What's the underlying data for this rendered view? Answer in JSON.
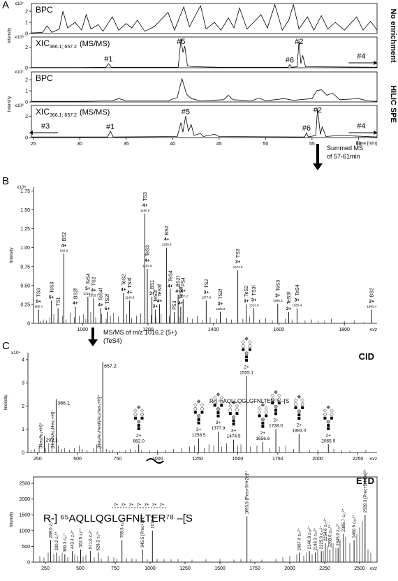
{
  "chart_data": [
    {
      "type": "line",
      "panel": "A",
      "title": "BPC",
      "y_scale": "x10⁷",
      "color": "#000000",
      "xlim": [
        24.8,
        62
      ],
      "ylim": [
        0,
        2.7
      ],
      "yticks": [
        0,
        1,
        2
      ],
      "x": [
        24.8,
        26,
        26.5,
        27,
        27.8,
        28.2,
        28.7,
        29.5,
        30.2,
        30.7,
        31.2,
        32,
        32.5,
        33.5,
        34.2,
        35,
        35.6,
        36.2,
        37,
        38,
        39.5,
        40.2,
        41.2,
        41.8,
        43,
        43.6,
        44.5,
        45.2,
        46,
        46.6,
        47.2,
        48,
        49.5,
        50.2,
        51,
        51.8,
        52.5,
        53,
        53.6,
        54.5,
        55.2,
        56,
        56.7,
        57.5,
        58.5,
        59.8,
        60.5,
        61.3,
        62
      ],
      "values": [
        0.05,
        0.1,
        0.7,
        0.1,
        0.4,
        2.0,
        0.5,
        1.0,
        0.3,
        1.7,
        0.4,
        0.8,
        0.2,
        1.5,
        0.3,
        0.9,
        0.5,
        1.2,
        0.2,
        0.6,
        1.9,
        0.3,
        2.4,
        0.6,
        2.5,
        0.4,
        1.0,
        0.3,
        1.4,
        0.5,
        2.3,
        0.4,
        1.7,
        0.5,
        2.6,
        0.3,
        1.2,
        2.6,
        0.4,
        1.5,
        0.3,
        1.6,
        0.4,
        1.0,
        0.3,
        1.5,
        0.3,
        1.1,
        0.3
      ]
    },
    {
      "type": "line",
      "title": "XIC",
      "title_sub": "366.1; 657.2",
      "title_suffix": "(MS/MS)",
      "y_scale": "x10⁶",
      "y_label": "Intensity",
      "side_label": "No enrichment",
      "color": "#000000",
      "xlim": [
        24.8,
        62
      ],
      "ylim": [
        0,
        3
      ],
      "yticks": [
        0,
        2
      ],
      "x": [
        24.8,
        30,
        32.8,
        33.1,
        33.4,
        40.6,
        40.9,
        41.1,
        41.3,
        41.6,
        42.2,
        45,
        52.4,
        52.6,
        52.8,
        53.4,
        53.6,
        53.8,
        54,
        54.3,
        62
      ],
      "values": [
        0.02,
        0.03,
        0.05,
        0.4,
        0.05,
        0.05,
        2.8,
        1.5,
        2.1,
        0.2,
        0.1,
        0.05,
        0.05,
        0.3,
        0.05,
        0.1,
        2.6,
        0.4,
        1.2,
        0.1,
        0.05
      ],
      "annotations": [
        {
          "label": "#5",
          "x": 40.9
        },
        {
          "label": "#2",
          "x": 53.6
        },
        {
          "label": "#1",
          "x": 33.1
        },
        {
          "label": "#6",
          "x": 52.6
        },
        {
          "label": "#4",
          "x": 60.3,
          "arrow": "right"
        }
      ]
    },
    {
      "type": "line",
      "title": "BPC",
      "y_scale": "x10⁷",
      "color": "#000000",
      "xlim": [
        24.8,
        62
      ],
      "ylim": [
        0,
        2.7
      ],
      "yticks": [
        0,
        1,
        2
      ],
      "x": [
        24.8,
        30,
        33.5,
        34.2,
        35,
        39.5,
        40.5,
        41,
        41.5,
        42,
        43,
        45.5,
        46,
        46.5,
        48.5,
        49.3,
        50,
        52,
        53,
        55,
        55.5,
        56,
        56.6,
        57.2,
        58,
        60,
        61,
        62
      ],
      "values": [
        0.05,
        0.05,
        0.1,
        0.3,
        0.1,
        0.1,
        0.4,
        2.1,
        0.7,
        0.3,
        0.1,
        0.2,
        0.6,
        0.2,
        0.1,
        0.35,
        0.1,
        0.3,
        0.15,
        0.3,
        1.0,
        1.1,
        0.6,
        0.8,
        0.2,
        0.3,
        0.1,
        0.05
      ]
    },
    {
      "type": "line",
      "title": "XIC",
      "title_sub": "366.1; 657.2",
      "title_suffix": "(MS/MS)",
      "y_scale": "x10⁶",
      "y_label": "Intensity",
      "side_label": "HILIC SPE",
      "x_label": "Time [min]",
      "color": "#000000",
      "xlim": [
        24.8,
        62
      ],
      "ylim": [
        0,
        3
      ],
      "yticks": [
        0,
        2
      ],
      "xticks": [
        25,
        30,
        35,
        40,
        45,
        50,
        55,
        60
      ],
      "x": [
        24.8,
        33,
        33.3,
        33.6,
        40.5,
        40.9,
        41.1,
        41.4,
        41.7,
        42,
        42.3,
        43,
        43.3,
        44.5,
        45,
        54.2,
        54.4,
        54.6,
        55.4,
        55.6,
        55.9,
        56.1,
        56.5,
        58,
        62
      ],
      "values": [
        0.05,
        0.05,
        0.6,
        0.05,
        0.1,
        1.4,
        0.5,
        2.0,
        0.6,
        1.2,
        0.2,
        0.4,
        0.1,
        0.3,
        0.1,
        0.05,
        0.45,
        0.05,
        0.2,
        2.7,
        0.3,
        1.0,
        0.1,
        0.2,
        0.05
      ],
      "annotations": [
        {
          "label": "#3",
          "x": 26.3,
          "arrow": "left"
        },
        {
          "label": "#1",
          "x": 33.3
        },
        {
          "label": "#5",
          "x": 41.4
        },
        {
          "label": "#6",
          "x": 54.4
        },
        {
          "label": "#2",
          "x": 55.6
        },
        {
          "label": "#4",
          "x": 60.3,
          "arrow": "right"
        }
      ]
    },
    {
      "type": "stick",
      "panel": "B",
      "y_scale": "x10⁶",
      "y_label": "Intensity",
      "x_label": "m/z",
      "color": "#000000",
      "xlim": [
        850,
        1900
      ],
      "ylim": [
        0,
        1.8
      ],
      "yticks": [
        0,
        0.25,
        {
          "value": 0.5,
          "label": "0.50"
        },
        0.75,
        {
          "value": 1,
          "label": "1.00"
        },
        1.25,
        {
          "value": 1.5,
          "label": "1.50"
        },
        1.75
      ],
      "xticks": [
        1000,
        1200,
        1400,
        1600,
        1800
      ],
      "x": [
        870,
        880,
        890,
        900,
        912,
        925,
        938,
        950,
        962,
        975,
        990,
        1002,
        1010,
        1025,
        1040,
        1058,
        1072,
        1085,
        1095,
        1110,
        1135,
        1150,
        1165,
        1178,
        1210,
        1225,
        1240,
        1265,
        1280,
        1295,
        1320,
        1335,
        1350,
        1365,
        1390,
        1410,
        1440,
        1455,
        1490,
        1510,
        1540,
        1560,
        1580,
        1620,
        1640,
        1680,
        1700,
        1720,
        1740,
        1760,
        1800,
        1830,
        1860
      ],
      "values": [
        0.03,
        0.05,
        0.04,
        0.08,
        0.12,
        0.06,
        0.1,
        0.05,
        0.14,
        0.08,
        0.1,
        0.12,
        0.06,
        0.15,
        0.08,
        0.12,
        0.06,
        0.1,
        0.14,
        0.09,
        0.12,
        0.07,
        0.1,
        0.13,
        0.11,
        0.08,
        0.12,
        0.1,
        0.07,
        0.09,
        0.08,
        0.06,
        0.1,
        0.05,
        0.08,
        0.06,
        0.07,
        0.05,
        0.06,
        0.09,
        0.05,
        0.07,
        0.04,
        0.06,
        0.05,
        0.04,
        0.05,
        0.03,
        0.04,
        0.06,
        0.03,
        0.04,
        0.02
      ],
      "peaks": [
        {
          "name": "TS3",
          "charge": "5+",
          "mz": 865.4,
          "value": 0.18
        },
        {
          "name": "TeS3",
          "charge": "5+",
          "x": 905,
          "value": 0.3
        },
        {
          "name": "TS1",
          "x": 925,
          "value": 0.2
        },
        {
          "name": "BS2",
          "charge": "4+",
          "mz": 942.9,
          "value": 0.92
        },
        {
          "name": "BS2f",
          "charge": "4+",
          "x": 978,
          "value": 0.22
        },
        {
          "name": "TeS4",
          "charge": "5+",
          "mz": 1016.2,
          "value": 0.35
        },
        {
          "name": "TS2",
          "charge": "4+",
          "mz": 1033.7,
          "value": 0.33
        },
        {
          "name": "TeS4f",
          "charge": "4+",
          "x": 1055,
          "value": 0.2
        },
        {
          "name": "TS2f",
          "charge": "5+",
          "x": 1075,
          "value": 0.15
        },
        {
          "name": "TeS2",
          "charge": "4+",
          "x": 1125,
          "value": 0.4
        },
        {
          "name": "TS3f",
          "charge": "4+",
          "mz": 1143.8,
          "value": 0.3
        },
        {
          "name": "TS3",
          "charge": "4+",
          "mz": 1190.5,
          "value": 1.45
        },
        {
          "name": "TeS3",
          "charge": "4+",
          "mz": 1197.8,
          "value": 0.72
        },
        {
          "name": "BS1",
          "charge": "3+",
          "x": 1212,
          "value": 0.35
        },
        {
          "name": "TeS2f",
          "charge": "3+",
          "x": 1222,
          "value": 0.18
        },
        {
          "name": "TeS3f",
          "charge": "4+",
          "x": 1235,
          "value": 0.25
        },
        {
          "name": "BS2",
          "charge": "4+",
          "mz": 1256.9,
          "value": 1.0
        },
        {
          "name": "TeS4",
          "charge": "4+",
          "x": 1268,
          "value": 0.45
        },
        {
          "name": "PS3",
          "x": 1280,
          "value": 0.15
        },
        {
          "name": "BS2f",
          "charge": "4+",
          "x": 1292,
          "value": 0.38
        },
        {
          "name": "TeS4f",
          "charge": "4+",
          "x": 1300,
          "value": 0.22
        },
        {
          "name": "PS4",
          "charge": "4+",
          "mz": 1307.2,
          "value": 0.32
        },
        {
          "name": "TS2",
          "charge": "3+",
          "mz": 1377.8,
          "value": 0.3
        },
        {
          "name": "TS2f",
          "charge": "3+",
          "mz": 1420.8,
          "value": 0.15
        },
        {
          "name": "TS3",
          "charge": "3+",
          "mz": 1474.5,
          "value": 0.7
        },
        {
          "name": "TeS2",
          "charge": "3+",
          "x": 1500,
          "value": 0.25
        },
        {
          "name": "TS3f",
          "charge": "3+",
          "mz": 1523.6,
          "value": 0.2
        },
        {
          "name": "TeS3",
          "charge": "3+",
          "mz": 1596.5,
          "value": 0.26
        },
        {
          "name": "TeS3f",
          "charge": "3+",
          "x": 1630,
          "value": 0.15
        },
        {
          "name": "TeS4",
          "charge": "3+",
          "mz": 1655.4,
          "value": 0.2
        },
        {
          "name": "BS2",
          "charge": "2+",
          "mz": 1883.4,
          "value": 0.18
        }
      ]
    },
    {
      "type": "stick",
      "panel": "C",
      "title": "CID",
      "y_scale": "x10⁴",
      "y_label": "Intensity",
      "x_label": "m/z",
      "color": "#000000",
      "sequence": "R-] ⁶⁵AQLLQGLGFNLTER⁷⁸ –[S",
      "xlim": [
        190,
        2370
      ],
      "ylim": [
        0,
        4.3
      ],
      "yticks": [
        0,
        1,
        2,
        3,
        4
      ],
      "xticks": [
        250,
        500,
        750,
        1000,
        1250,
        1500,
        1750,
        2000,
        2250
      ],
      "x": [
        210,
        230,
        260,
        300,
        320,
        340,
        380,
        400,
        420,
        450,
        480,
        510,
        530,
        560,
        600,
        620,
        640,
        680,
        700,
        720,
        760,
        800,
        830,
        860,
        900,
        950,
        1000,
        1050,
        1100,
        1150,
        1200,
        1230,
        1290,
        1320,
        1350,
        1400,
        1430,
        1500,
        1520,
        1580,
        1620,
        1700,
        1760,
        1800,
        1850,
        1950,
        2000,
        2100,
        2150,
        2200,
        2300
      ],
      "values": [
        0.1,
        0.15,
        0.3,
        0.2,
        0.4,
        0.25,
        0.3,
        0.15,
        0.2,
        0.12,
        0.18,
        0.3,
        0.15,
        0.1,
        0.2,
        0.35,
        0.25,
        0.15,
        0.1,
        0.12,
        0.08,
        0.1,
        0.15,
        0.12,
        0.1,
        0.08,
        0.1,
        0.12,
        0.15,
        0.2,
        0.25,
        0.3,
        0.2,
        0.35,
        0.3,
        0.25,
        0.4,
        0.3,
        0.35,
        0.25,
        0.3,
        0.2,
        0.25,
        0.3,
        0.15,
        0.1,
        0.12,
        0.15,
        0.1,
        0.08,
        0.1
      ],
      "peaks": [
        {
          "mz": 292.1,
          "value": 0.7
        },
        {
          "mz": 366.1,
          "value": 2.3
        },
        {
          "mz": 657.2,
          "value": 3.9
        },
        {
          "charge": "2+",
          "mz": 882,
          "label": "882.0",
          "value": 0.35
        },
        {
          "charge": "3+",
          "mz": 1256.5,
          "value": 0.6
        },
        {
          "charge": "3+",
          "mz": 1377.9,
          "value": 0.9
        },
        {
          "charge": "3+",
          "mz": 1474.5,
          "value": 0.55
        },
        {
          "charge": "2+",
          "mz": 1555.1,
          "value": 3.3
        },
        {
          "charge": "2+",
          "mz": 1656.6,
          "value": 0.45
        },
        {
          "charge": "2+",
          "mz": 1738,
          "label": "1738.0",
          "value": 1.0
        },
        {
          "charge": "2+",
          "mz": 1883,
          "label": "1883.0",
          "value": 0.8
        },
        {
          "charge": "2+",
          "mz": 2065.9,
          "value": 0.35
        }
      ],
      "ion_labels": [
        {
          "text": "[NeuAc₁+H]⁺",
          "mz": 292.1
        },
        {
          "text": "[HexNAc₁Hex₁+H]⁺",
          "mz": 366.1
        },
        {
          "text": "[NeuAc₁HexNAc₁Hex₁+H]⁺",
          "mz": 657.2
        }
      ]
    },
    {
      "type": "stick",
      "title": "ETD",
      "y_label": "Intensity",
      "x_label": "m/z",
      "color": "#000000",
      "sequence": "R-] ⁶⁵AQLLQGLGFNLTER⁷⁸ –[S",
      "site_labels": [
        "2+",
        "2+",
        "2+",
        "2+",
        "2+",
        "2+",
        "2+"
      ],
      "xlim": [
        165,
        2625
      ],
      "ylim": [
        0,
        2700
      ],
      "yticks": [
        0,
        500,
        1000,
        1500,
        2000,
        2500
      ],
      "xticks": [
        250,
        500,
        750,
        1000,
        1250,
        1500,
        1750,
        2000,
        2250,
        2500
      ],
      "x": [
        210,
        240,
        270,
        310,
        350,
        370,
        410,
        460,
        480,
        520,
        540,
        600,
        650,
        700,
        740,
        760,
        830,
        870,
        900,
        980,
        1050,
        1100,
        1150,
        1200,
        1300,
        1400,
        1500,
        1600,
        1650,
        1720,
        1800,
        1900,
        1950,
        2000,
        2050,
        2100,
        2120,
        2160,
        2200,
        2240,
        2270,
        2310,
        2330,
        2360,
        2400,
        2430,
        2480,
        2500,
        2520,
        2560,
        2580
      ],
      "values": [
        200,
        150,
        300,
        250,
        200,
        300,
        150,
        250,
        200,
        180,
        220,
        150,
        120,
        200,
        150,
        100,
        130,
        120,
        100,
        90,
        110,
        100,
        90,
        100,
        80,
        90,
        100,
        80,
        100,
        90,
        80,
        100,
        150,
        200,
        250,
        200,
        300,
        250,
        400,
        350,
        500,
        600,
        450,
        700,
        800,
        600,
        900,
        1100,
        1300,
        400,
        300
      ],
      "peaks": [
        {
          "ion": "z₂¹⁺",
          "mz": 288,
          "label": "288.0",
          "value": 700
        },
        {
          "ion": "c₁¹⁺",
          "mz": 330.2,
          "value": 300
        },
        {
          "ion": "c₃¹⁺",
          "mz": 389.3,
          "value": 250
        },
        {
          "ion": "z₃¹⁺",
          "mz": 443.4,
          "value": 350
        },
        {
          "ion": "z₄¹⁺",
          "mz": 502.5,
          "value": 400
        },
        {
          "ion": "c₄¹⁺",
          "mz": 571.6,
          "value": 350
        },
        {
          "ion": "c₅¹⁺",
          "mz": 628.3,
          "value": 300
        },
        {
          "ion": "c₆¹⁺",
          "mz": 798.5,
          "value": 700
        },
        {
          "ion": "[Prec+5H]⁵⁺",
          "mz": 945.5,
          "value": 400
        },
        {
          "mz": 1016.3,
          "value": 1000
        },
        {
          "ion": "[Prec+5H+2e]³⁺",
          "mz": 1693.5,
          "value": 1450
        },
        {
          "ion": "z₁₇²⁺",
          "mz": 2067.4,
          "value": 300
        },
        {
          "ion": "z₁₈²⁺",
          "mz": 2140.8,
          "value": 350
        },
        {
          "ion": "c₁₉²⁺",
          "mz": 2183.3,
          "value": 300
        },
        {
          "ion": "c₂₀²⁺",
          "mz": 2225.9,
          "value": 350
        },
        {
          "ion": "z₂₀²⁺",
          "mz": 2254.6,
          "value": 600
        },
        {
          "ion": "c₂₁²⁺",
          "mz": 2288,
          "label": "2288.0",
          "value": 400
        },
        {
          "ion": "z₂₁²⁺",
          "mz": 2345.9,
          "value": 450
        },
        {
          "ion": "c₂₂²⁺",
          "mz": 2385.7,
          "value": 900
        },
        {
          "ion": "c₂₃²⁺",
          "mz": 2460.5,
          "value": 700
        },
        {
          "ion": "[Prec+5H+3e]²⁺",
          "mz": 2539.3,
          "value": 1500
        }
      ]
    }
  ],
  "transitions": [
    {
      "text": [
        "Summed MS",
        "of 57-61min"
      ]
    },
    {
      "text": [
        "MS/MS of m/z 1016.2 (5+)",
        "(TeS4)"
      ]
    }
  ]
}
